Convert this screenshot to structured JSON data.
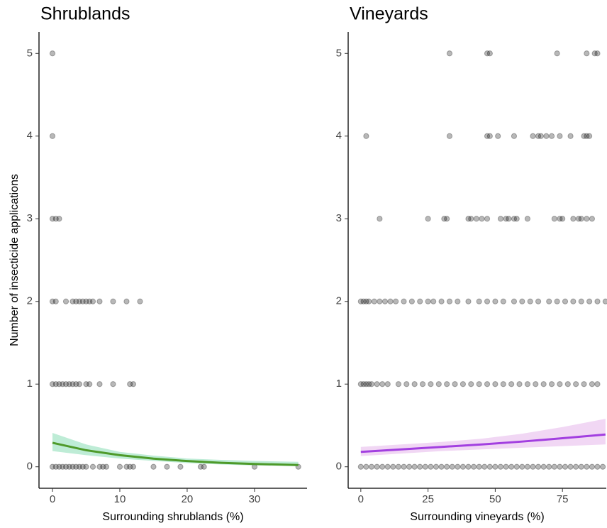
{
  "chart_data": [
    {
      "type": "scatter",
      "title": "Shrublands",
      "xlabel": "Surrounding shrublands (%)",
      "ylabel": "Number of insecticide applications",
      "xlim": [
        -2,
        37.8
      ],
      "ylim": [
        -0.26,
        5.26
      ],
      "xticks": [
        0,
        10,
        20,
        30
      ],
      "yticks": [
        0,
        1,
        2,
        3,
        4,
        5
      ],
      "series": [
        {
          "color": "#000000",
          "x": [
            0,
            0,
            0,
            0.5,
            1,
            0,
            0.5,
            2,
            3,
            3.5,
            4,
            4.5,
            5,
            5.5,
            6,
            7,
            9,
            11,
            13,
            0,
            0.5,
            1,
            1.5,
            2,
            2.5,
            3,
            3.5,
            4,
            5,
            5.5,
            7,
            9,
            11.5,
            12,
            0,
            0.5,
            1,
            1.5,
            2,
            2.5,
            3,
            3.5,
            4,
            4.5,
            5,
            6,
            7,
            7.5,
            8,
            10,
            11,
            11.5,
            12,
            15,
            17,
            19,
            22,
            22.5,
            30,
            36.5
          ],
          "values": [
            5,
            4,
            3,
            3,
            3,
            2,
            2,
            2,
            2,
            2,
            2,
            2,
            2,
            2,
            2,
            2,
            2,
            2,
            2,
            1,
            1,
            1,
            1,
            1,
            1,
            1,
            1,
            1,
            1,
            1,
            1,
            1,
            1,
            1,
            0,
            0,
            0,
            0,
            0,
            0,
            0,
            0,
            0,
            0,
            0,
            0,
            0,
            0,
            0,
            0,
            0,
            0,
            0,
            0,
            0,
            0,
            0,
            0,
            0,
            0
          ]
        }
      ],
      "fit": {
        "color": "#4e9a2a",
        "band_color": "#a8e6c8",
        "x": [
          0,
          5,
          10,
          15,
          20,
          25,
          30,
          36.5
        ],
        "y": [
          0.29,
          0.2,
          0.14,
          0.098,
          0.069,
          0.048,
          0.034,
          0.021
        ],
        "lower": [
          0.19,
          0.14,
          0.1,
          0.07,
          0.045,
          0.028,
          0.016,
          0.006
        ],
        "upper": [
          0.41,
          0.27,
          0.18,
          0.135,
          0.1,
          0.083,
          0.07,
          0.06
        ]
      }
    },
    {
      "type": "scatter",
      "title": "Vineyards",
      "xlabel": "Surrounding vineyards (%)",
      "xlim": [
        -4.7,
        91.3
      ],
      "ylim": [
        -0.26,
        5.26
      ],
      "xticks": [
        0,
        25,
        50,
        75
      ],
      "yticks": [
        0,
        1,
        2,
        3,
        4,
        5
      ],
      "series": [
        {
          "color": "#000000",
          "x": [
            33,
            47,
            48,
            73,
            84,
            87,
            88,
            2,
            33,
            47,
            48,
            51,
            57,
            64,
            66,
            67,
            69,
            71,
            74,
            78,
            83,
            84,
            85,
            7,
            25,
            31,
            32,
            40,
            41,
            43,
            45,
            47,
            52,
            54,
            55,
            57,
            58,
            62,
            72,
            74,
            75,
            79,
            81,
            82,
            84,
            86,
            0,
            1,
            2,
            3,
            5,
            7,
            9,
            11,
            13,
            16,
            19,
            22,
            25,
            27,
            30,
            33,
            36,
            40,
            44,
            47,
            50,
            53,
            57,
            60,
            63,
            66,
            70,
            73,
            76,
            79,
            82,
            85,
            88,
            91,
            0,
            1,
            2,
            3,
            4,
            6,
            8,
            10,
            14,
            17,
            20,
            23,
            26,
            29,
            32,
            35,
            38,
            41,
            44,
            47,
            50,
            53,
            56,
            59,
            62,
            65,
            68,
            71,
            74,
            77,
            80,
            83,
            86,
            88,
            0,
            2,
            4,
            6,
            8,
            10,
            12,
            14,
            16,
            18,
            20,
            22,
            24,
            26,
            28,
            30,
            32,
            34,
            36,
            38,
            40,
            42,
            44,
            46,
            48,
            50,
            52,
            54,
            56,
            58,
            60,
            62,
            64,
            66,
            68,
            70,
            72,
            74,
            76,
            78,
            80,
            82,
            84,
            86,
            88,
            90
          ],
          "values": [
            5,
            5,
            5,
            5,
            5,
            5,
            5,
            4,
            4,
            4,
            4,
            4,
            4,
            4,
            4,
            4,
            4,
            4,
            4,
            4,
            4,
            4,
            4,
            3,
            3,
            3,
            3,
            3,
            3,
            3,
            3,
            3,
            3,
            3,
            3,
            3,
            3,
            3,
            3,
            3,
            3,
            3,
            3,
            3,
            3,
            3,
            2,
            2,
            2,
            2,
            2,
            2,
            2,
            2,
            2,
            2,
            2,
            2,
            2,
            2,
            2,
            2,
            2,
            2,
            2,
            2,
            2,
            2,
            2,
            2,
            2,
            2,
            2,
            2,
            2,
            2,
            2,
            2,
            2,
            2,
            1,
            1,
            1,
            1,
            1,
            1,
            1,
            1,
            1,
            1,
            1,
            1,
            1,
            1,
            1,
            1,
            1,
            1,
            1,
            1,
            1,
            1,
            1,
            1,
            1,
            1,
            1,
            1,
            1,
            1,
            1,
            1,
            1,
            1,
            0,
            0,
            0,
            0,
            0,
            0,
            0,
            0,
            0,
            0,
            0,
            0,
            0,
            0,
            0,
            0,
            0,
            0,
            0,
            0,
            0,
            0,
            0,
            0,
            0,
            0,
            0,
            0,
            0,
            0,
            0,
            0,
            0,
            0,
            0,
            0,
            0,
            0,
            0,
            0,
            0,
            0,
            0,
            0,
            0,
            0
          ]
        }
      ],
      "fit": {
        "color": "#a23fe0",
        "band_color": "#ecc9f0",
        "x": [
          0,
          15,
          30,
          45,
          60,
          75,
          91
        ],
        "y": [
          0.18,
          0.21,
          0.24,
          0.27,
          0.305,
          0.345,
          0.39
        ],
        "lower": [
          0.13,
          0.16,
          0.19,
          0.21,
          0.23,
          0.25,
          0.27
        ],
        "upper": [
          0.24,
          0.27,
          0.3,
          0.34,
          0.4,
          0.48,
          0.58
        ]
      }
    }
  ]
}
